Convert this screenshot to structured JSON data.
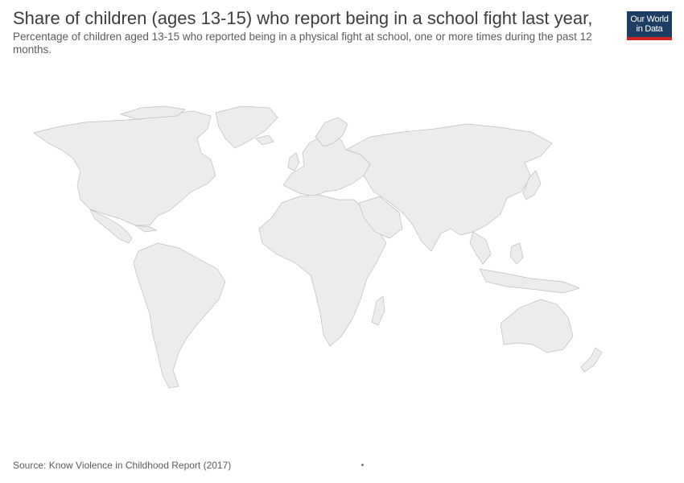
{
  "header": {
    "title": "Share of children (ages 13-15) who report being in a school fight last year,",
    "subtitle": "Percentage of children aged 13-15 who reported being in a physical fight at school, one or more times during the past 12 months."
  },
  "logo": {
    "line1": "Our World",
    "line2": "in Data",
    "bg_color": "#1d3d63",
    "accent_color": "#ce261e"
  },
  "map": {
    "land_color": "#ececec",
    "border_color": "#bdbdbd"
  },
  "footer": {
    "source": "Source: Know Violence in Childhood Report (2017)"
  }
}
